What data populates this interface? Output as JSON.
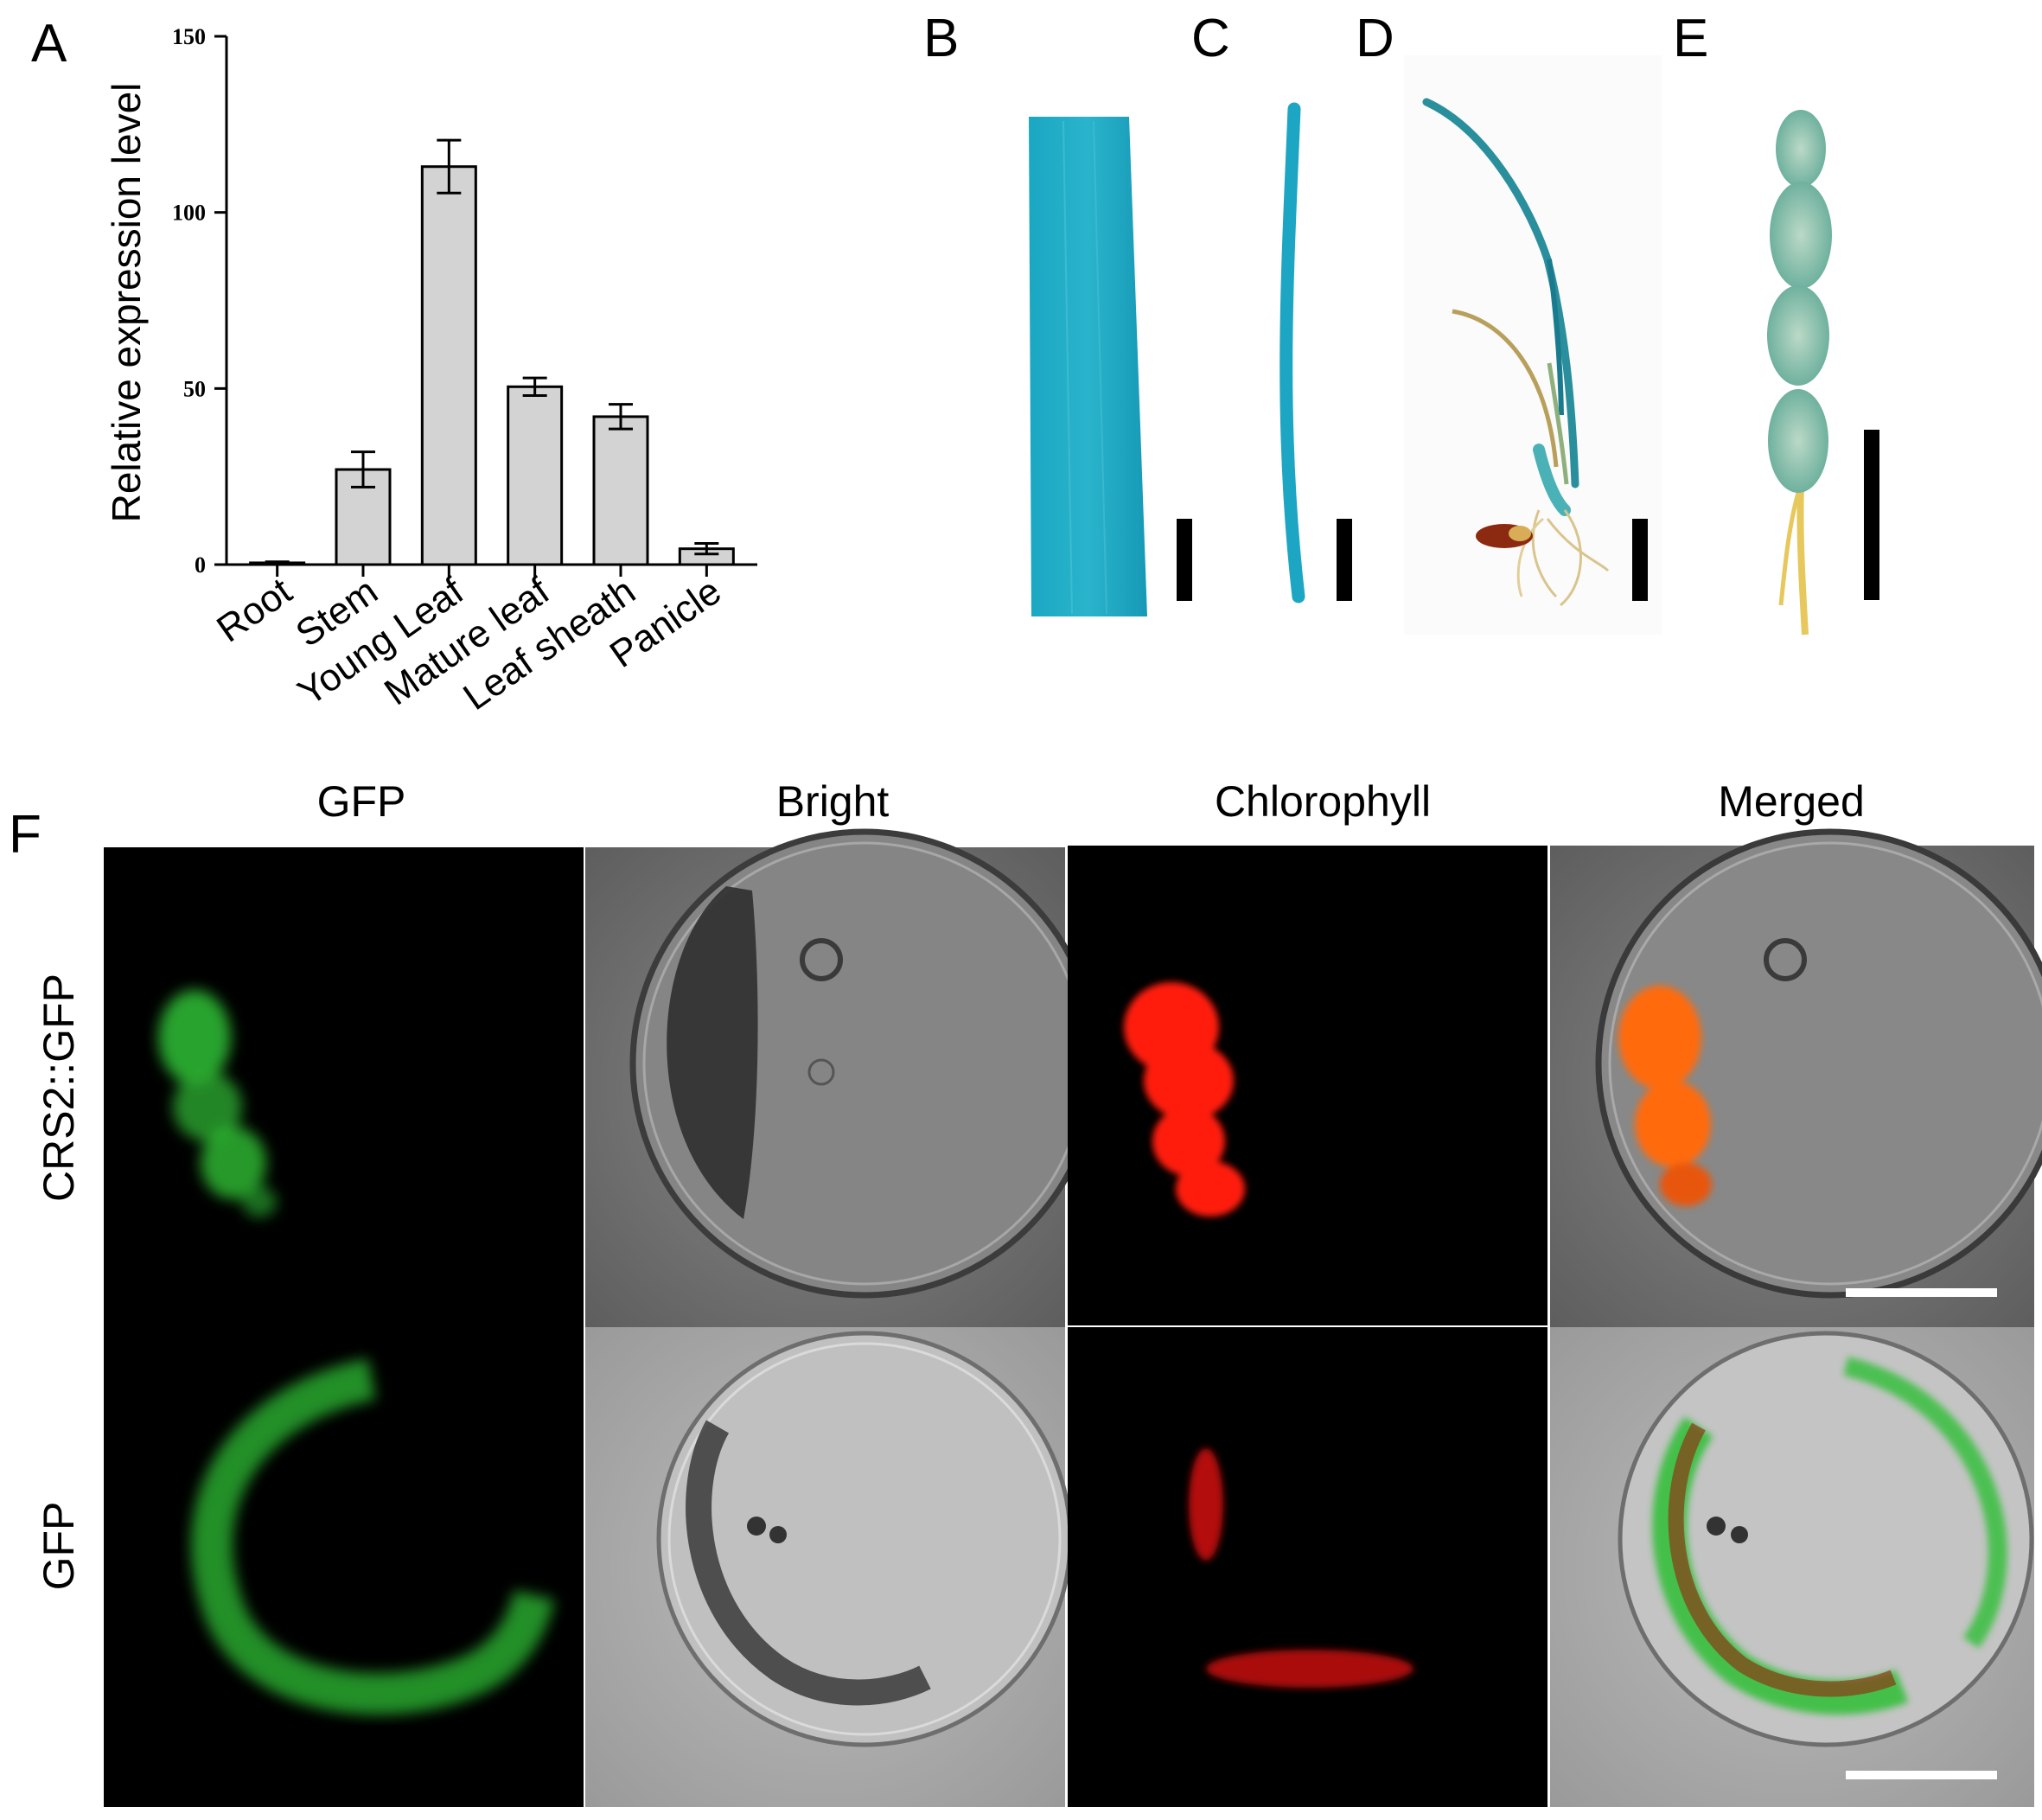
{
  "panels": {
    "a": "A",
    "b": "B",
    "c": "C",
    "d": "D",
    "e": "E",
    "f": "F"
  },
  "chart_data": {
    "type": "bar",
    "title": "",
    "xlabel": "",
    "ylabel": "Relative expression level",
    "ylim": [
      0,
      150
    ],
    "yticks": [
      0,
      50,
      100,
      150
    ],
    "categories": [
      "Root",
      "Stem",
      "Young Leaf",
      "Mature leaf",
      "Leaf sheath",
      "Panicle"
    ],
    "values": [
      0.5,
      27,
      113,
      50.5,
      42,
      4.5
    ],
    "errors": [
      0.3,
      5,
      7.5,
      2.5,
      3.5,
      1.5
    ],
    "bar_color": "#d3d3d3",
    "grid": false
  },
  "micrograph": {
    "columns": [
      "GFP",
      "Bright",
      "Chlorophyll",
      "Merged"
    ],
    "rows": [
      "CRS2::GFP",
      "GFP"
    ]
  },
  "colors": {
    "gus_stain": "#1fa9c4",
    "gfp": "#2fbf35",
    "chlorophyll": "#ff1a10",
    "merged_overlap": "#ff6a10"
  }
}
